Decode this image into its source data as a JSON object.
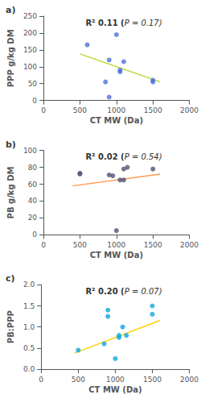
{
  "chart_data": [
    {
      "type": "scatter",
      "title": "a)",
      "xlabel": "CT MW (Da)",
      "ylabel": "PPP g/kg DM",
      "annotations": [
        "R² 0.11 (",
        "P = 0.17)"
      ],
      "series": [
        {
          "type": "scatter",
          "x": [
            600,
            850,
            900,
            900,
            1000,
            1050,
            1050,
            1100,
            1500,
            1500
          ],
          "values": [
            165,
            55,
            10,
            120,
            195,
            90,
            85,
            115,
            60,
            55
          ]
        },
        {
          "type": "line",
          "x": [
            500,
            1600
          ],
          "values": [
            138,
            55
          ]
        }
      ],
      "xlim": [
        0,
        2000
      ],
      "xticks": [
        0,
        500,
        1000,
        1500,
        2000
      ],
      "ylim": [
        0,
        250
      ],
      "yticks": [
        0,
        50,
        100,
        150,
        200,
        250
      ],
      "grid": false
    },
    {
      "type": "scatter",
      "title": "b)",
      "xlabel": "CT MW (Da)",
      "ylabel": "PB g/kg DM",
      "annotations": [
        "R² 0.02 (",
        "P = 0.54)"
      ],
      "series": [
        {
          "type": "scatter",
          "x": [
            500,
            500,
            900,
            950,
            1000,
            1050,
            1100,
            1100,
            1150,
            1500
          ],
          "values": [
            73,
            72,
            71,
            70,
            5,
            65,
            65,
            78,
            80,
            78
          ]
        },
        {
          "type": "line",
          "x": [
            400,
            1600
          ],
          "values": [
            58,
            72
          ]
        }
      ],
      "xlim": [
        0,
        2000
      ],
      "xticks": [
        0,
        500,
        1000,
        1500,
        2000
      ],
      "ylim": [
        0,
        100
      ],
      "yticks": [
        0,
        20,
        40,
        60,
        80,
        100
      ],
      "grid": false
    },
    {
      "type": "scatter",
      "title": "c)",
      "xlabel": "CT MW (Da)",
      "ylabel": "PB:PPP",
      "annotations": [
        "R² 0.20 (",
        "P = 0.07)"
      ],
      "series": [
        {
          "type": "scatter",
          "x": [
            500,
            850,
            900,
            900,
            1000,
            1050,
            1050,
            1100,
            1150,
            1500,
            1500
          ],
          "values": [
            0.45,
            0.6,
            1.4,
            1.25,
            0.25,
            0.75,
            0.8,
            1.0,
            0.8,
            1.5,
            1.3
          ]
        },
        {
          "type": "line",
          "x": [
            450,
            1600
          ],
          "values": [
            0.38,
            1.15
          ]
        }
      ],
      "xlim": [
        0,
        2000
      ],
      "xticks": [
        0,
        500,
        1000,
        1500,
        2000
      ],
      "ylim": [
        0,
        2.0
      ],
      "yticks": [
        {
          "value": 0,
          "label": "0.0"
        },
        0.5,
        {
          "value": 1,
          "label": "1.0"
        },
        1.5,
        {
          "value": 2,
          "label": "2.0"
        }
      ],
      "grid": false
    }
  ]
}
